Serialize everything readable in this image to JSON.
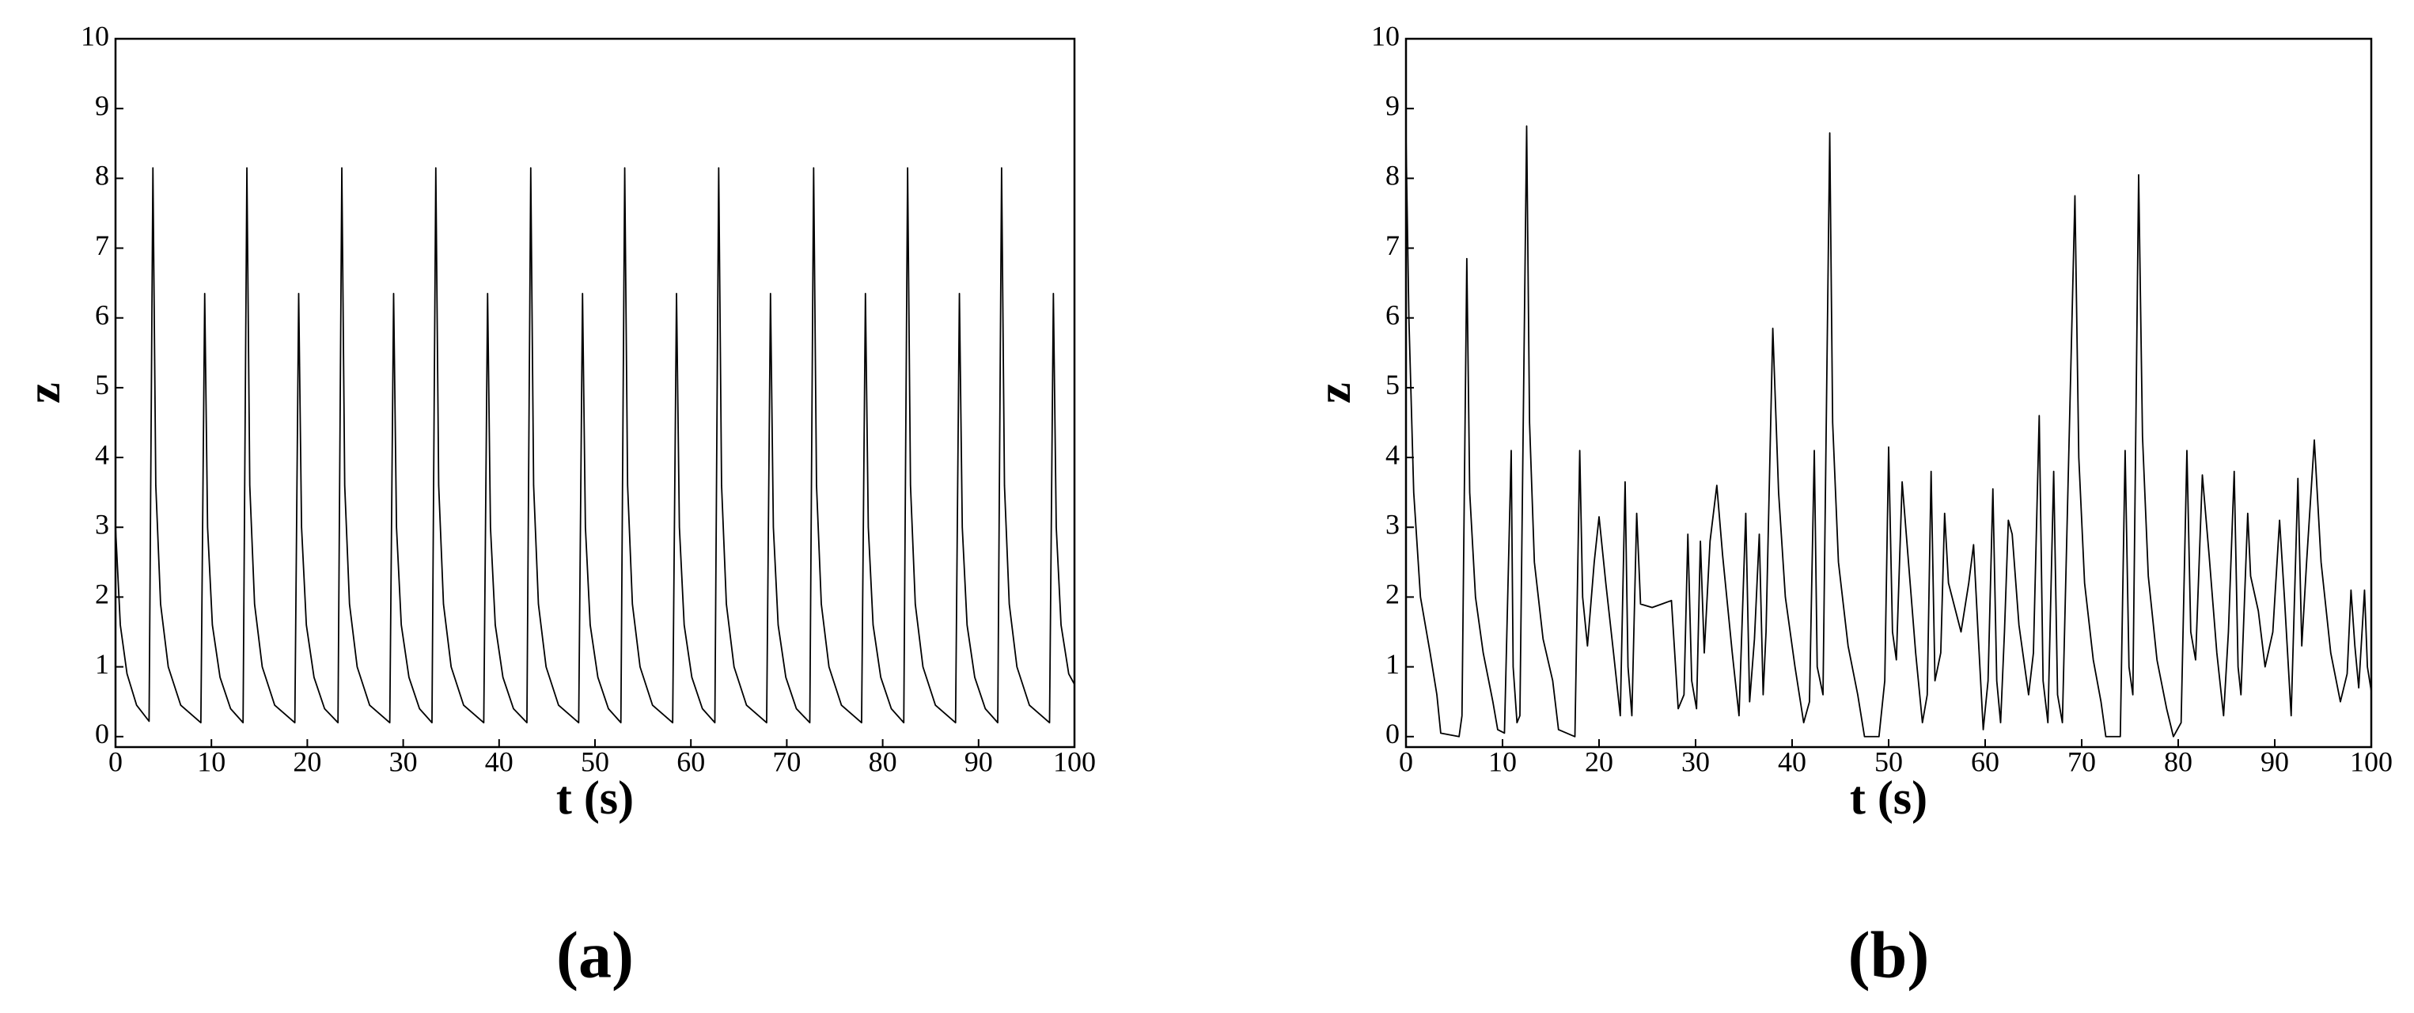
{
  "chart_data": [
    {
      "type": "line",
      "panel_label": "(a)",
      "xlabel": "t (s)",
      "ylabel": "z",
      "xlim": [
        0,
        100
      ],
      "xticks": [
        0,
        10,
        20,
        30,
        40,
        50,
        60,
        70,
        80,
        90,
        100
      ],
      "ylim": [
        -0.15,
        10
      ],
      "yticks": [
        0,
        1,
        2,
        3,
        4,
        5,
        6,
        7,
        8,
        9,
        10
      ],
      "series": [
        {
          "color": "#000000",
          "x": [
            0,
            0.5,
            1.2,
            2.2,
            3.5,
            3.9,
            4.2,
            4.7,
            5.5,
            6.8,
            8.9,
            9.3,
            9.6,
            10.1,
            10.9,
            12.0,
            13.3,
            13.7,
            14.0,
            14.5,
            15.3,
            16.6,
            18.7,
            19.1,
            19.4,
            19.9,
            20.7,
            21.8,
            23.2,
            23.6,
            23.9,
            24.4,
            25.2,
            26.5,
            28.6,
            29.0,
            29.3,
            29.8,
            30.6,
            31.7,
            33.0,
            33.4,
            33.7,
            34.2,
            35.0,
            36.3,
            38.4,
            38.8,
            39.1,
            39.6,
            40.4,
            41.5,
            42.9,
            43.3,
            43.6,
            44.1,
            44.9,
            46.2,
            48.3,
            48.7,
            49.0,
            49.5,
            50.3,
            51.4,
            52.7,
            53.1,
            53.4,
            53.9,
            54.7,
            56.0,
            58.1,
            58.5,
            58.8,
            59.3,
            60.1,
            61.2,
            62.5,
            62.9,
            63.2,
            63.7,
            64.5,
            65.8,
            67.9,
            68.3,
            68.6,
            69.1,
            69.9,
            71.0,
            72.4,
            72.8,
            73.1,
            73.6,
            74.4,
            75.7,
            77.8,
            78.2,
            78.5,
            79.0,
            79.8,
            80.9,
            82.2,
            82.6,
            82.9,
            83.4,
            84.2,
            85.5,
            87.6,
            88.0,
            88.3,
            88.8,
            89.6,
            90.7,
            92.0,
            92.4,
            92.7,
            93.2,
            94.0,
            95.3,
            97.4,
            97.8,
            98.1,
            98.6,
            99.4,
            100
          ],
          "values": [
            3.0,
            1.6,
            0.9,
            0.45,
            0.22,
            8.15,
            3.6,
            1.9,
            1.0,
            0.45,
            0.2,
            6.35,
            3.0,
            1.6,
            0.85,
            0.4,
            0.2,
            8.15,
            3.6,
            1.9,
            1.0,
            0.45,
            0.2,
            6.35,
            3.0,
            1.6,
            0.85,
            0.4,
            0.2,
            8.15,
            3.6,
            1.9,
            1.0,
            0.45,
            0.2,
            6.35,
            3.0,
            1.6,
            0.85,
            0.4,
            0.2,
            8.15,
            3.6,
            1.9,
            1.0,
            0.45,
            0.2,
            6.35,
            3.0,
            1.6,
            0.85,
            0.4,
            0.2,
            8.15,
            3.6,
            1.9,
            1.0,
            0.45,
            0.2,
            6.35,
            3.0,
            1.6,
            0.85,
            0.4,
            0.2,
            8.15,
            3.6,
            1.9,
            1.0,
            0.45,
            0.2,
            6.35,
            3.0,
            1.6,
            0.85,
            0.4,
            0.2,
            8.15,
            3.6,
            1.9,
            1.0,
            0.45,
            0.2,
            6.35,
            3.0,
            1.6,
            0.85,
            0.4,
            0.2,
            8.15,
            3.6,
            1.9,
            1.0,
            0.45,
            0.2,
            6.35,
            3.0,
            1.6,
            0.85,
            0.4,
            0.2,
            8.15,
            3.6,
            1.9,
            1.0,
            0.45,
            0.2,
            6.35,
            3.0,
            1.6,
            0.85,
            0.4,
            0.2,
            8.15,
            3.6,
            1.9,
            1.0,
            0.45,
            0.2,
            6.35,
            3.0,
            1.6,
            0.9,
            0.75
          ]
        }
      ]
    },
    {
      "type": "line",
      "panel_label": "(b)",
      "xlabel": "t (s)",
      "ylabel": "z",
      "xlim": [
        0,
        100
      ],
      "xticks": [
        0,
        10,
        20,
        30,
        40,
        50,
        60,
        70,
        80,
        90,
        100
      ],
      "ylim": [
        -0.15,
        10
      ],
      "yticks": [
        0,
        1,
        2,
        3,
        4,
        5,
        6,
        7,
        8,
        9,
        10
      ],
      "series": [
        {
          "color": "#000000",
          "x": [
            0,
            0.3,
            0.8,
            1.5,
            2.5,
            3.2,
            3.6,
            5.5,
            5.8,
            6.3,
            6.6,
            7.2,
            8,
            9,
            9.5,
            10.2,
            10.9,
            11.1,
            11.5,
            11.8,
            12.5,
            12.8,
            13.3,
            14.2,
            15.2,
            15.8,
            17.5,
            18.0,
            18.3,
            18.8,
            19.5,
            20.0,
            20.7,
            21.5,
            22.2,
            22.7,
            23.0,
            23.4,
            23.9,
            24.3,
            25.5,
            26.5,
            27.5,
            28.2,
            28.8,
            29.2,
            29.6,
            30.1,
            30.5,
            30.9,
            31.5,
            32.2,
            32.8,
            33.8,
            34.5,
            35.2,
            35.6,
            36.1,
            36.6,
            37.0,
            37.3,
            38.0,
            38.6,
            39.3,
            40.3,
            41.2,
            41.8,
            42.3,
            42.6,
            43.2,
            43.9,
            44.2,
            44.8,
            45.8,
            46.8,
            47.5,
            49.0,
            49.6,
            50.0,
            50.4,
            50.8,
            51.4,
            52.0,
            52.8,
            53.5,
            54.0,
            54.4,
            54.8,
            55.4,
            55.8,
            56.2,
            57.5,
            58.3,
            58.8,
            59.3,
            59.8,
            60.3,
            60.8,
            61.2,
            61.6,
            62.0,
            62.4,
            62.8,
            63.5,
            64.5,
            65.0,
            65.6,
            66.0,
            66.5,
            67.1,
            67.5,
            68.0,
            69.3,
            69.7,
            70.3,
            71.2,
            72.0,
            72.5,
            74.0,
            74.5,
            74.9,
            75.3,
            75.9,
            76.3,
            76.9,
            77.8,
            78.8,
            79.5,
            80.3,
            80.9,
            81.3,
            81.8,
            82.5,
            83.2,
            84.0,
            84.7,
            85.2,
            85.8,
            86.2,
            86.5,
            87.2,
            87.5,
            88.3,
            89.0,
            89.8,
            90.5,
            91.0,
            91.7,
            92.4,
            92.8,
            93.3,
            94.1,
            94.8,
            95.8,
            96.8,
            97.5,
            97.9,
            98.3,
            98.7,
            99.3,
            99.6,
            100
          ],
          "values": [
            8.6,
            6,
            3.5,
            2,
            1.2,
            0.6,
            0.05,
            0.0,
            0.3,
            6.85,
            3.5,
            2,
            1.2,
            0.5,
            0.1,
            0.05,
            4.1,
            1.0,
            0.2,
            0.3,
            8.75,
            4.5,
            2.5,
            1.4,
            0.8,
            0.1,
            0.0,
            4.1,
            2.0,
            1.3,
            2.5,
            3.15,
            2.2,
            1.2,
            0.3,
            3.65,
            1.0,
            0.3,
            3.2,
            1.9,
            1.85,
            1.9,
            1.95,
            0.4,
            0.6,
            2.9,
            0.8,
            0.4,
            2.8,
            1.2,
            2.8,
            3.6,
            2.6,
            1.2,
            0.3,
            3.2,
            0.5,
            1.4,
            2.9,
            0.6,
            1.5,
            5.85,
            3.5,
            2,
            1.0,
            0.2,
            0.5,
            4.1,
            1.0,
            0.6,
            8.65,
            4.5,
            2.5,
            1.3,
            0.6,
            0.0,
            0.0,
            0.8,
            4.15,
            1.5,
            1.1,
            3.65,
            2.6,
            1.2,
            0.2,
            0.6,
            3.8,
            0.8,
            1.2,
            3.2,
            2.2,
            1.5,
            2.2,
            2.75,
            1.4,
            0.1,
            0.8,
            3.55,
            0.8,
            0.2,
            1.5,
            3.1,
            2.9,
            1.6,
            0.6,
            1.2,
            4.6,
            0.8,
            0.2,
            3.8,
            0.6,
            0.2,
            7.75,
            4,
            2.2,
            1.1,
            0.5,
            0.0,
            0.0,
            4.1,
            1.0,
            0.6,
            8.05,
            4.3,
            2.3,
            1.1,
            0.4,
            0.0,
            0.2,
            4.1,
            1.5,
            1.1,
            3.75,
            2.6,
            1.2,
            0.3,
            1.5,
            3.8,
            1.0,
            0.6,
            3.2,
            2.3,
            1.8,
            1.0,
            1.5,
            3.1,
            2.0,
            0.3,
            3.7,
            1.3,
            2.5,
            4.25,
            2.5,
            1.2,
            0.5,
            0.9,
            2.1,
            1.3,
            0.7,
            2.1,
            1.0,
            0.65
          ]
        }
      ]
    }
  ]
}
